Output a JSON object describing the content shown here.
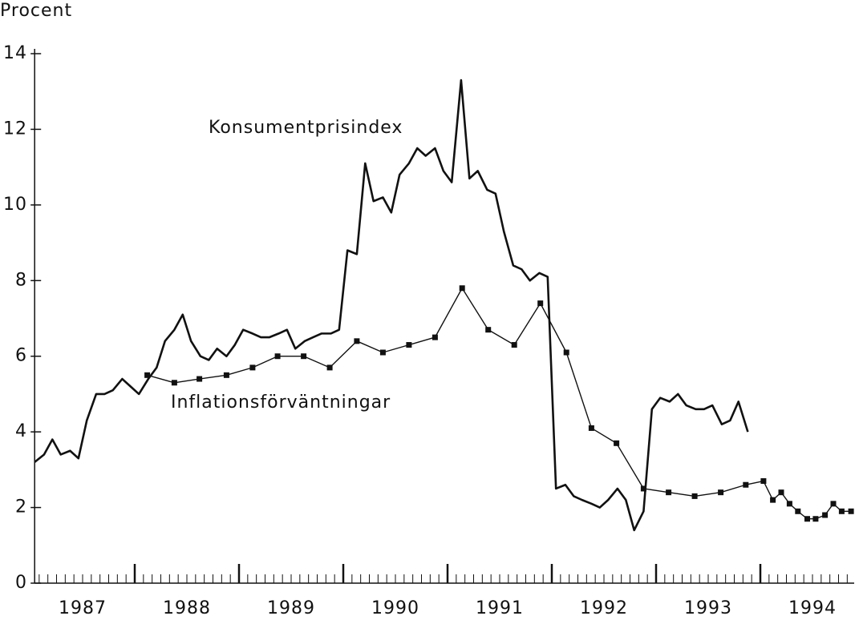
{
  "chart_data": {
    "type": "line",
    "y_label": "Procent",
    "xlim": [
      1987.04,
      1994.9
    ],
    "ylim": [
      0,
      14
    ],
    "yticks": [
      0,
      2,
      4,
      6,
      8,
      10,
      12,
      14
    ],
    "xticks": [
      {
        "value": 1987.5,
        "label": "1987"
      },
      {
        "value": 1988.5,
        "label": "1988"
      },
      {
        "value": 1989.5,
        "label": "1989"
      },
      {
        "value": 1990.5,
        "label": "1990"
      },
      {
        "value": 1991.5,
        "label": "1991"
      },
      {
        "value": 1992.5,
        "label": "1992"
      },
      {
        "value": 1993.5,
        "label": "1993"
      },
      {
        "value": 1994.5,
        "label": "1994"
      }
    ],
    "series": [
      {
        "name": "Konsumentprisindex",
        "color": "#111111",
        "markers": false,
        "x": [
          1987.04,
          1987.13,
          1987.21,
          1987.29,
          1987.38,
          1987.46,
          1987.54,
          1987.63,
          1987.71,
          1987.79,
          1987.88,
          1987.96,
          1988.04,
          1988.13,
          1988.21,
          1988.29,
          1988.38,
          1988.46,
          1988.54,
          1988.63,
          1988.71,
          1988.79,
          1988.88,
          1988.96,
          1989.04,
          1989.13,
          1989.21,
          1989.29,
          1989.38,
          1989.46,
          1989.54,
          1989.63,
          1989.71,
          1989.79,
          1989.88,
          1989.96,
          1990.04,
          1990.13,
          1990.21,
          1990.29,
          1990.38,
          1990.46,
          1990.54,
          1990.63,
          1990.71,
          1990.79,
          1990.88,
          1990.96,
          1991.04,
          1991.13,
          1991.21,
          1991.29,
          1991.38,
          1991.46,
          1991.54,
          1991.63,
          1991.71,
          1991.79,
          1991.88,
          1991.96,
          1992.04,
          1992.13,
          1992.21,
          1992.29,
          1992.38,
          1992.46,
          1992.54,
          1992.63,
          1992.71,
          1992.79,
          1992.88,
          1992.96,
          1993.04,
          1993.13,
          1993.21,
          1993.29,
          1993.38,
          1993.46,
          1993.54,
          1993.63,
          1993.71,
          1993.79,
          1993.88
        ],
        "values": [
          3.2,
          3.4,
          3.8,
          3.4,
          3.5,
          3.3,
          4.3,
          5.0,
          5.0,
          5.1,
          5.4,
          5.2,
          5.0,
          5.4,
          5.7,
          6.4,
          6.7,
          7.1,
          6.4,
          6.0,
          5.9,
          6.2,
          6.0,
          6.3,
          6.7,
          6.6,
          6.5,
          6.5,
          6.6,
          6.7,
          6.2,
          6.4,
          6.5,
          6.6,
          6.6,
          6.7,
          8.8,
          8.7,
          11.1,
          10.1,
          10.2,
          9.8,
          10.8,
          11.1,
          11.5,
          11.3,
          11.5,
          10.9,
          10.6,
          13.3,
          10.7,
          10.9,
          10.4,
          10.3,
          9.3,
          8.4,
          8.3,
          8.0,
          8.2,
          8.1,
          2.5,
          2.6,
          2.3,
          2.2,
          2.1,
          2.0,
          2.2,
          2.5,
          2.2,
          1.4,
          1.9,
          4.6,
          4.9,
          4.8,
          5.0,
          4.7,
          4.6,
          4.6,
          4.7,
          4.2,
          4.3,
          4.8,
          4.0
        ]
      },
      {
        "name": "Inflationsförväntningar",
        "color": "#111111",
        "markers": true,
        "x": [
          1988.12,
          1988.38,
          1988.62,
          1988.88,
          1989.13,
          1989.37,
          1989.62,
          1989.87,
          1990.13,
          1990.38,
          1990.63,
          1990.88,
          1991.14,
          1991.39,
          1991.64,
          1991.89,
          1992.14,
          1992.38,
          1992.62,
          1992.88,
          1993.12,
          1993.37,
          1993.62,
          1993.86,
          1994.03,
          1994.12,
          1994.2,
          1994.28,
          1994.36,
          1994.45,
          1994.53,
          1994.62,
          1994.7,
          1994.78,
          1994.87
        ],
        "values": [
          5.5,
          5.3,
          5.4,
          5.5,
          5.7,
          6.0,
          6.0,
          5.7,
          6.4,
          6.1,
          6.3,
          6.5,
          7.8,
          6.7,
          6.3,
          7.4,
          6.1,
          4.1,
          3.7,
          2.5,
          2.4,
          2.3,
          2.4,
          2.6,
          2.7,
          2.2,
          2.4,
          2.1,
          1.9,
          1.7,
          1.7,
          1.8,
          2.1,
          1.9,
          1.9
        ]
      }
    ]
  }
}
